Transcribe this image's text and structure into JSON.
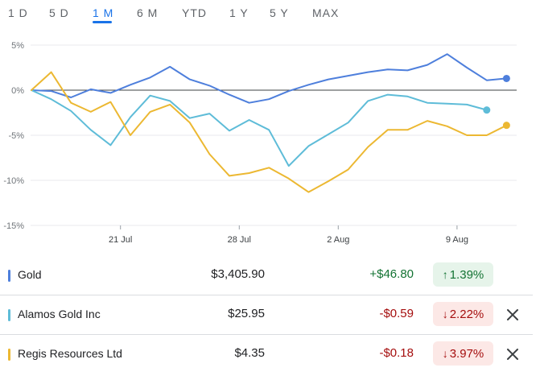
{
  "range_tabs": [
    "1 D",
    "5 D",
    "1 M",
    "6 M",
    "YTD",
    "1 Y",
    "5 Y",
    "MAX"
  ],
  "active_tab": "1 M",
  "colors": {
    "gold": "#4e7fdc",
    "alamos": "#5ebcd8",
    "regis": "#ecb832",
    "positive_text": "#137333",
    "positive_bg": "#e6f4ea",
    "negative_text": "#a50e0e",
    "negative_bg": "#fce8e6",
    "active_tab": "#1a73e8"
  },
  "chart_data": {
    "type": "line",
    "title": "",
    "xlabel": "",
    "ylabel": "",
    "ylim": [
      -15,
      5
    ],
    "y_ticks": [
      5,
      0,
      -5,
      -10,
      -15
    ],
    "y_tick_labels": [
      "5%",
      "0%",
      "-5%",
      "-10%",
      "-15%"
    ],
    "x_tick_labels": [
      "21 Jul",
      "28 Jul",
      "2 Aug",
      "9 Aug"
    ],
    "x_tick_index": [
      4.5,
      10.5,
      15.5,
      21.5
    ],
    "series": [
      {
        "name": "Gold",
        "color_key": "gold",
        "values": [
          0,
          -0.1,
          -0.8,
          0.1,
          -0.3,
          0.6,
          1.4,
          2.6,
          1.2,
          0.5,
          -0.5,
          -1.4,
          -1.0,
          -0.1,
          0.6,
          1.2,
          1.6,
          2.0,
          2.3,
          2.2,
          2.8,
          4.0,
          2.5,
          1.1,
          1.3
        ]
      },
      {
        "name": "Alamos Gold Inc",
        "color_key": "alamos",
        "values": [
          0,
          -1.0,
          -2.3,
          -4.4,
          -6.1,
          -3.0,
          -0.6,
          -1.2,
          -3.1,
          -2.6,
          -4.5,
          -3.3,
          -4.4,
          -8.4,
          -6.2,
          -4.9,
          -3.6,
          -1.2,
          -0.5,
          -0.7,
          -1.4,
          -1.5,
          -1.6,
          -2.2
        ]
      },
      {
        "name": "Regis Resources Ltd",
        "color_key": "regis",
        "values": [
          0,
          2.0,
          -1.4,
          -2.4,
          -1.3,
          -5.0,
          -2.4,
          -1.6,
          -3.6,
          -7.1,
          -9.5,
          -9.2,
          -8.6,
          -9.8,
          -11.3,
          -10.1,
          -8.8,
          -6.3,
          -4.4,
          -4.4,
          -3.4,
          -4.0,
          -5.0,
          -5.0,
          -3.9
        ]
      }
    ]
  },
  "rows": [
    {
      "name": "Gold",
      "price": "$3,405.90",
      "change": "+$46.80",
      "percent": "1.39%",
      "arrow": "↑",
      "direction": "up",
      "color_key": "gold",
      "removable": false
    },
    {
      "name": "Alamos Gold Inc",
      "price": "$25.95",
      "change": "-$0.59",
      "percent": "2.22%",
      "arrow": "↓",
      "direction": "down",
      "color_key": "alamos",
      "removable": true
    },
    {
      "name": "Regis Resources Ltd",
      "price": "$4.35",
      "change": "-$0.18",
      "percent": "3.97%",
      "arrow": "↓",
      "direction": "down",
      "color_key": "regis",
      "removable": true
    }
  ]
}
